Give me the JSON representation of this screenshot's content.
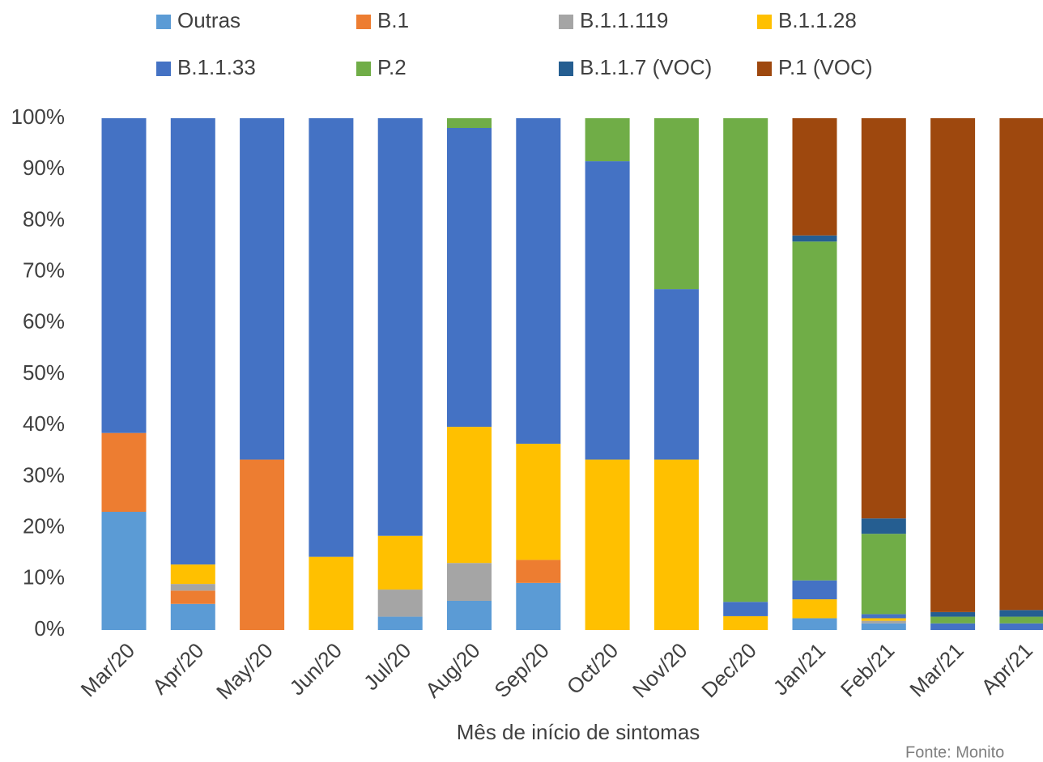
{
  "chart_data": {
    "type": "stacked_bar",
    "x_label": "Mês de início de sintomas",
    "source": "Fonte: Monito",
    "categories": [
      "Mar/20",
      "Apr/20",
      "May/20",
      "Jun/20",
      "Jul/20",
      "Aug/20",
      "Sep/20",
      "Oct/20",
      "Nov/20",
      "Dec/20",
      "Jan/21",
      "Feb/21",
      "Mar/21",
      "Apr/21"
    ],
    "series": [
      {
        "name": "Outras",
        "color": "#5b9bd5",
        "values": [
          23.1,
          5.1,
          0,
          0,
          2.6,
          5.7,
          9.2,
          0,
          0,
          0,
          2.3,
          1.3,
          0,
          0
        ]
      },
      {
        "name": "B.1",
        "color": "#ed7d31",
        "values": [
          15.4,
          2.6,
          33.3,
          0,
          0,
          0,
          4.5,
          0,
          0,
          0,
          0,
          0,
          0,
          0
        ]
      },
      {
        "name": "B.1.1.119",
        "color": "#a5a5a5",
        "values": [
          0,
          1.3,
          0,
          0,
          5.3,
          7.4,
          0,
          0,
          0,
          0,
          0,
          0.5,
          0,
          0
        ]
      },
      {
        "name": "B.1.1.28",
        "color": "#ffc000",
        "values": [
          0,
          3.8,
          0,
          14.3,
          10.5,
          26.6,
          22.7,
          33.3,
          33.3,
          2.7,
          3.7,
          0.5,
          0,
          0
        ]
      },
      {
        "name": "B.1.1.33",
        "color": "#4472c4",
        "values": [
          61.5,
          87.2,
          66.7,
          85.7,
          81.6,
          58.4,
          63.6,
          58.3,
          33.3,
          2.8,
          3.7,
          0.8,
          1.3,
          1.3
        ]
      },
      {
        "name": "P.2",
        "color": "#70ad47",
        "values": [
          0,
          0,
          0,
          0,
          0,
          1.9,
          0,
          8.4,
          33.4,
          94.5,
          66.2,
          15.7,
          1.3,
          1.3
        ]
      },
      {
        "name": "B.1.1.7 (VOC)",
        "color": "#255e91",
        "values": [
          0,
          0,
          0,
          0,
          0,
          0,
          0,
          0,
          0,
          0,
          1.2,
          3.0,
          0.9,
          1.3
        ]
      },
      {
        "name": "P.1 (VOC)",
        "color": "#9e480e",
        "values": [
          0,
          0,
          0,
          0,
          0,
          0,
          0,
          0,
          0,
          0,
          22.9,
          78.2,
          96.5,
          96.1
        ]
      }
    ],
    "ylim": [
      0,
      100
    ],
    "yticks": [
      {
        "value": 0,
        "label": "0%"
      },
      {
        "value": 10,
        "label": "10%"
      },
      {
        "value": 20,
        "label": "20%"
      },
      {
        "value": 30,
        "label": "30%"
      },
      {
        "value": 40,
        "label": "40%"
      },
      {
        "value": 50,
        "label": "50%"
      },
      {
        "value": 60,
        "label": "60%"
      },
      {
        "value": 70,
        "label": "70%"
      },
      {
        "value": 80,
        "label": "80%"
      },
      {
        "value": 90,
        "label": "90%"
      },
      {
        "value": 100,
        "label": "100%"
      }
    ],
    "grid": false
  }
}
